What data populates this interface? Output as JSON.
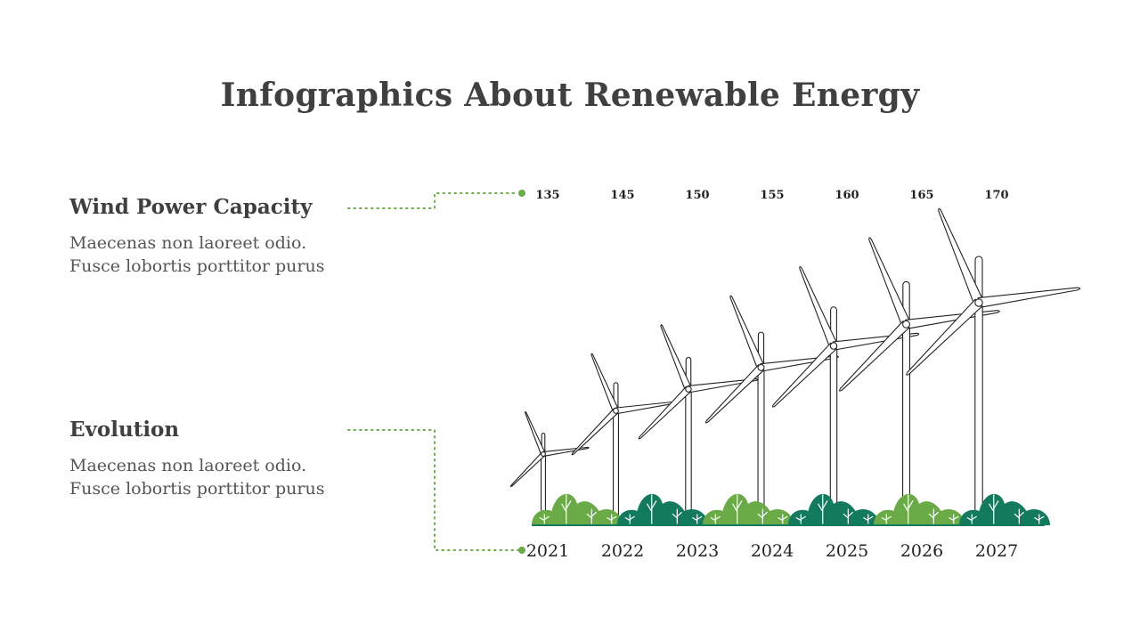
{
  "title": "Infographics About Renewable Energy",
  "sections": [
    {
      "heading": "Wind Power Capacity",
      "line1": "Maecenas non laoreet odio.",
      "line2": "Fusce lobortis porttitor purus"
    },
    {
      "heading": "Evolution",
      "line1": "Maecenas non laoreet odio.",
      "line2": "Fusce lobortis porttitor purus"
    }
  ],
  "colors": {
    "accent_light": "#6aaa47",
    "accent_dark": "#147a5e",
    "text": "#3d3d3d"
  },
  "chart_data": {
    "type": "bar",
    "categories": [
      "2021",
      "2022",
      "2023",
      "2024",
      "2025",
      "2026",
      "2027"
    ],
    "values": [
      135,
      145,
      150,
      155,
      160,
      165,
      170
    ],
    "title": "",
    "xlabel": "",
    "ylabel": ""
  }
}
